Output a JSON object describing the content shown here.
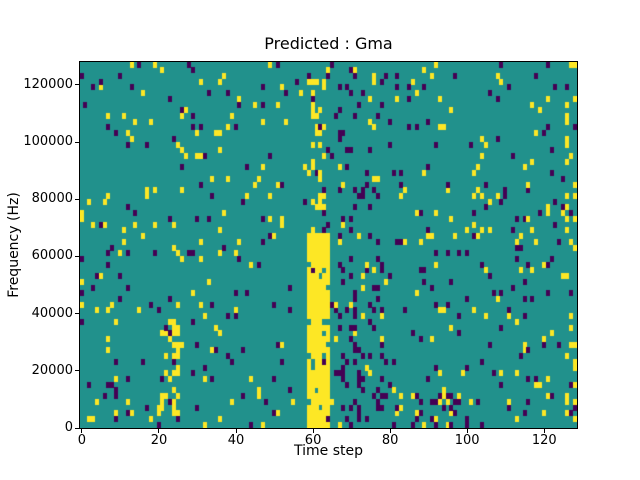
{
  "chart_data": {
    "type": "heatmap",
    "title": "Predicted : Gma",
    "xlabel": "Time step",
    "ylabel": "Frequency (Hz)",
    "xlim": [
      -0.5,
      128.5
    ],
    "ylim": [
      0,
      128000
    ],
    "x_ticks": [
      0,
      20,
      40,
      60,
      80,
      100,
      120
    ],
    "x_tick_labels": [
      "0",
      "20",
      "40",
      "60",
      "80",
      "100",
      "120"
    ],
    "y_ticks": [
      0,
      20000,
      40000,
      60000,
      80000,
      100000,
      120000
    ],
    "y_tick_labels": [
      "0",
      "20000",
      "40000",
      "60000",
      "80000",
      "100000",
      "120000"
    ],
    "grid": {
      "cols": 129,
      "rows": 64,
      "freq_per_row": 2000
    },
    "palette": {
      "low": "#440154",
      "mid": "#21918c",
      "high": "#fde725"
    },
    "value_meaning": {
      "0": "low (purple)",
      "1": "background (teal)",
      "2": "high (yellow)"
    },
    "legend": "none",
    "pattern": {
      "seed": 42,
      "base": {
        "low": 0.035,
        "high": 0.03
      },
      "features": [
        {
          "name": "purple-cluster-lower",
          "col_range": [
            63,
            79
          ],
          "freq_range": [
            0,
            62000
          ],
          "low": 0.16
        },
        {
          "name": "purple-scatter-upper",
          "col_range": [
            63,
            79
          ],
          "freq_range": [
            62000,
            126000
          ],
          "low": 0.07
        },
        {
          "name": "yellow-streak-left",
          "col_range": [
            21,
            26
          ],
          "freq_range": [
            4000,
            42000
          ],
          "high": 0.25
        },
        {
          "name": "bottom-right-mixed",
          "col_range": [
            86,
            102
          ],
          "freq_range": [
            0,
            12000
          ],
          "low": 0.25,
          "high": 0.18
        },
        {
          "name": "yellow-band-main",
          "col_range": [
            59,
            65
          ],
          "freq_range": [
            0,
            68000
          ],
          "high": 0.85,
          "low": 0.02
        },
        {
          "name": "yellow-band-upper",
          "col_range": [
            60,
            64
          ],
          "freq_range": [
            68000,
            124000
          ],
          "high": 0.32
        },
        {
          "name": "right-edge-yellow",
          "col_range": [
            126,
            129
          ],
          "freq_range": [
            0,
            128000
          ],
          "high": 0.12
        }
      ]
    }
  }
}
